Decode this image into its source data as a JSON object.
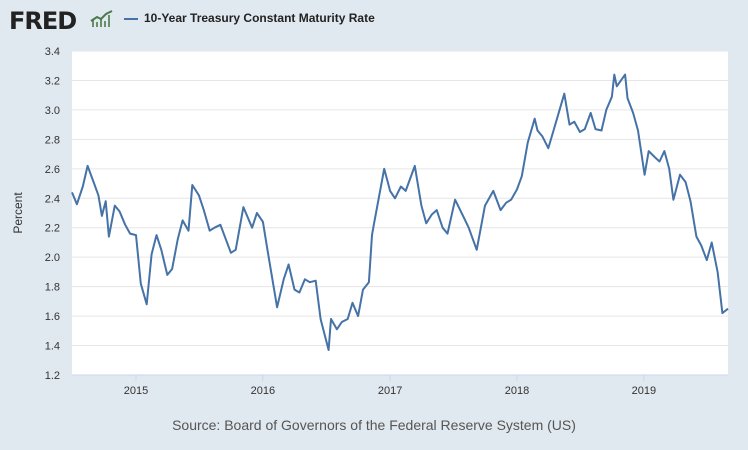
{
  "header": {
    "logo_text": "FRED",
    "legend_label": "10-Year Treasury Constant Maturity Rate",
    "legend_color": "#4572a7"
  },
  "source_text": "Source: Board of Governors of the Federal Reserve System (US)",
  "chart_data": {
    "type": "line",
    "title": "",
    "xlabel": "",
    "ylabel": "Percent",
    "xlim": [
      "2014-07-01",
      "2019-08-31"
    ],
    "ylim": [
      1.2,
      3.4
    ],
    "yticks": [
      1.2,
      1.4,
      1.6,
      1.8,
      2.0,
      2.2,
      2.4,
      2.6,
      2.8,
      3.0,
      3.2,
      3.4
    ],
    "xticks": [
      {
        "label": "2015",
        "date": "2015-01-01"
      },
      {
        "label": "2016",
        "date": "2016-01-01"
      },
      {
        "label": "2017",
        "date": "2017-01-01"
      },
      {
        "label": "2018",
        "date": "2018-01-01"
      },
      {
        "label": "2019",
        "date": "2019-01-01"
      }
    ],
    "grid": "horizontal",
    "series": [
      {
        "name": "10-Year Treasury Constant Maturity Rate",
        "color": "#4572a7",
        "points": [
          [
            "2014-07-01",
            2.44
          ],
          [
            "2014-07-15",
            2.36
          ],
          [
            "2014-08-01",
            2.48
          ],
          [
            "2014-08-15",
            2.62
          ],
          [
            "2014-09-01",
            2.51
          ],
          [
            "2014-09-15",
            2.42
          ],
          [
            "2014-09-25",
            2.28
          ],
          [
            "2014-10-06",
            2.38
          ],
          [
            "2014-10-15",
            2.14
          ],
          [
            "2014-11-01",
            2.35
          ],
          [
            "2014-11-15",
            2.31
          ],
          [
            "2014-12-01",
            2.22
          ],
          [
            "2014-12-15",
            2.16
          ],
          [
            "2015-01-01",
            2.15
          ],
          [
            "2015-01-15",
            1.82
          ],
          [
            "2015-02-01",
            1.68
          ],
          [
            "2015-02-15",
            2.02
          ],
          [
            "2015-03-01",
            2.15
          ],
          [
            "2015-03-15",
            2.05
          ],
          [
            "2015-04-01",
            1.88
          ],
          [
            "2015-04-15",
            1.92
          ],
          [
            "2015-05-01",
            2.12
          ],
          [
            "2015-05-15",
            2.25
          ],
          [
            "2015-06-01",
            2.18
          ],
          [
            "2015-06-12",
            2.49
          ],
          [
            "2015-07-01",
            2.42
          ],
          [
            "2015-07-15",
            2.32
          ],
          [
            "2015-08-01",
            2.18
          ],
          [
            "2015-08-15",
            2.2
          ],
          [
            "2015-09-01",
            2.22
          ],
          [
            "2015-10-01",
            2.03
          ],
          [
            "2015-10-15",
            2.05
          ],
          [
            "2015-11-06",
            2.34
          ],
          [
            "2015-12-01",
            2.2
          ],
          [
            "2015-12-15",
            2.3
          ],
          [
            "2016-01-01",
            2.24
          ],
          [
            "2016-01-15",
            2.04
          ],
          [
            "2016-02-11",
            1.66
          ],
          [
            "2016-03-01",
            1.85
          ],
          [
            "2016-03-15",
            1.95
          ],
          [
            "2016-04-01",
            1.78
          ],
          [
            "2016-04-15",
            1.76
          ],
          [
            "2016-05-01",
            1.85
          ],
          [
            "2016-05-15",
            1.83
          ],
          [
            "2016-06-01",
            1.84
          ],
          [
            "2016-06-15",
            1.58
          ],
          [
            "2016-07-08",
            1.37
          ],
          [
            "2016-07-15",
            1.58
          ],
          [
            "2016-08-01",
            1.51
          ],
          [
            "2016-08-15",
            1.56
          ],
          [
            "2016-09-01",
            1.58
          ],
          [
            "2016-09-15",
            1.69
          ],
          [
            "2016-10-01",
            1.6
          ],
          [
            "2016-10-15",
            1.78
          ],
          [
            "2016-11-01",
            1.83
          ],
          [
            "2016-11-10",
            2.15
          ],
          [
            "2016-11-15",
            2.22
          ],
          [
            "2016-12-15",
            2.6
          ],
          [
            "2017-01-01",
            2.45
          ],
          [
            "2017-01-15",
            2.4
          ],
          [
            "2017-02-01",
            2.48
          ],
          [
            "2017-02-15",
            2.45
          ],
          [
            "2017-03-13",
            2.62
          ],
          [
            "2017-04-01",
            2.35
          ],
          [
            "2017-04-15",
            2.23
          ],
          [
            "2017-05-01",
            2.29
          ],
          [
            "2017-05-15",
            2.32
          ],
          [
            "2017-06-01",
            2.2
          ],
          [
            "2017-06-15",
            2.16
          ],
          [
            "2017-07-07",
            2.39
          ],
          [
            "2017-08-01",
            2.27
          ],
          [
            "2017-08-15",
            2.2
          ],
          [
            "2017-09-07",
            2.05
          ],
          [
            "2017-10-01",
            2.35
          ],
          [
            "2017-10-25",
            2.45
          ],
          [
            "2017-11-15",
            2.32
          ],
          [
            "2017-12-01",
            2.37
          ],
          [
            "2017-12-15",
            2.39
          ],
          [
            "2018-01-01",
            2.46
          ],
          [
            "2018-01-15",
            2.55
          ],
          [
            "2018-02-01",
            2.78
          ],
          [
            "2018-02-21",
            2.94
          ],
          [
            "2018-03-01",
            2.86
          ],
          [
            "2018-03-15",
            2.82
          ],
          [
            "2018-04-01",
            2.74
          ],
          [
            "2018-04-15",
            2.85
          ],
          [
            "2018-05-17",
            3.11
          ],
          [
            "2018-06-01",
            2.9
          ],
          [
            "2018-06-15",
            2.92
          ],
          [
            "2018-07-01",
            2.85
          ],
          [
            "2018-07-15",
            2.87
          ],
          [
            "2018-08-01",
            2.98
          ],
          [
            "2018-08-15",
            2.87
          ],
          [
            "2018-09-01",
            2.86
          ],
          [
            "2018-09-15",
            3.0
          ],
          [
            "2018-10-01",
            3.09
          ],
          [
            "2018-10-08",
            3.24
          ],
          [
            "2018-10-15",
            3.16
          ],
          [
            "2018-11-08",
            3.24
          ],
          [
            "2018-11-15",
            3.08
          ],
          [
            "2018-12-01",
            2.98
          ],
          [
            "2018-12-15",
            2.86
          ],
          [
            "2019-01-03",
            2.56
          ],
          [
            "2019-01-15",
            2.72
          ],
          [
            "2019-02-01",
            2.68
          ],
          [
            "2019-02-15",
            2.65
          ],
          [
            "2019-03-01",
            2.72
          ],
          [
            "2019-03-15",
            2.6
          ],
          [
            "2019-03-27",
            2.39
          ],
          [
            "2019-04-15",
            2.56
          ],
          [
            "2019-05-01",
            2.51
          ],
          [
            "2019-05-15",
            2.38
          ],
          [
            "2019-06-01",
            2.14
          ],
          [
            "2019-06-15",
            2.08
          ],
          [
            "2019-07-01",
            1.98
          ],
          [
            "2019-07-15",
            2.1
          ],
          [
            "2019-08-01",
            1.9
          ],
          [
            "2019-08-15",
            1.62
          ],
          [
            "2019-08-31",
            1.65
          ]
        ]
      }
    ]
  }
}
